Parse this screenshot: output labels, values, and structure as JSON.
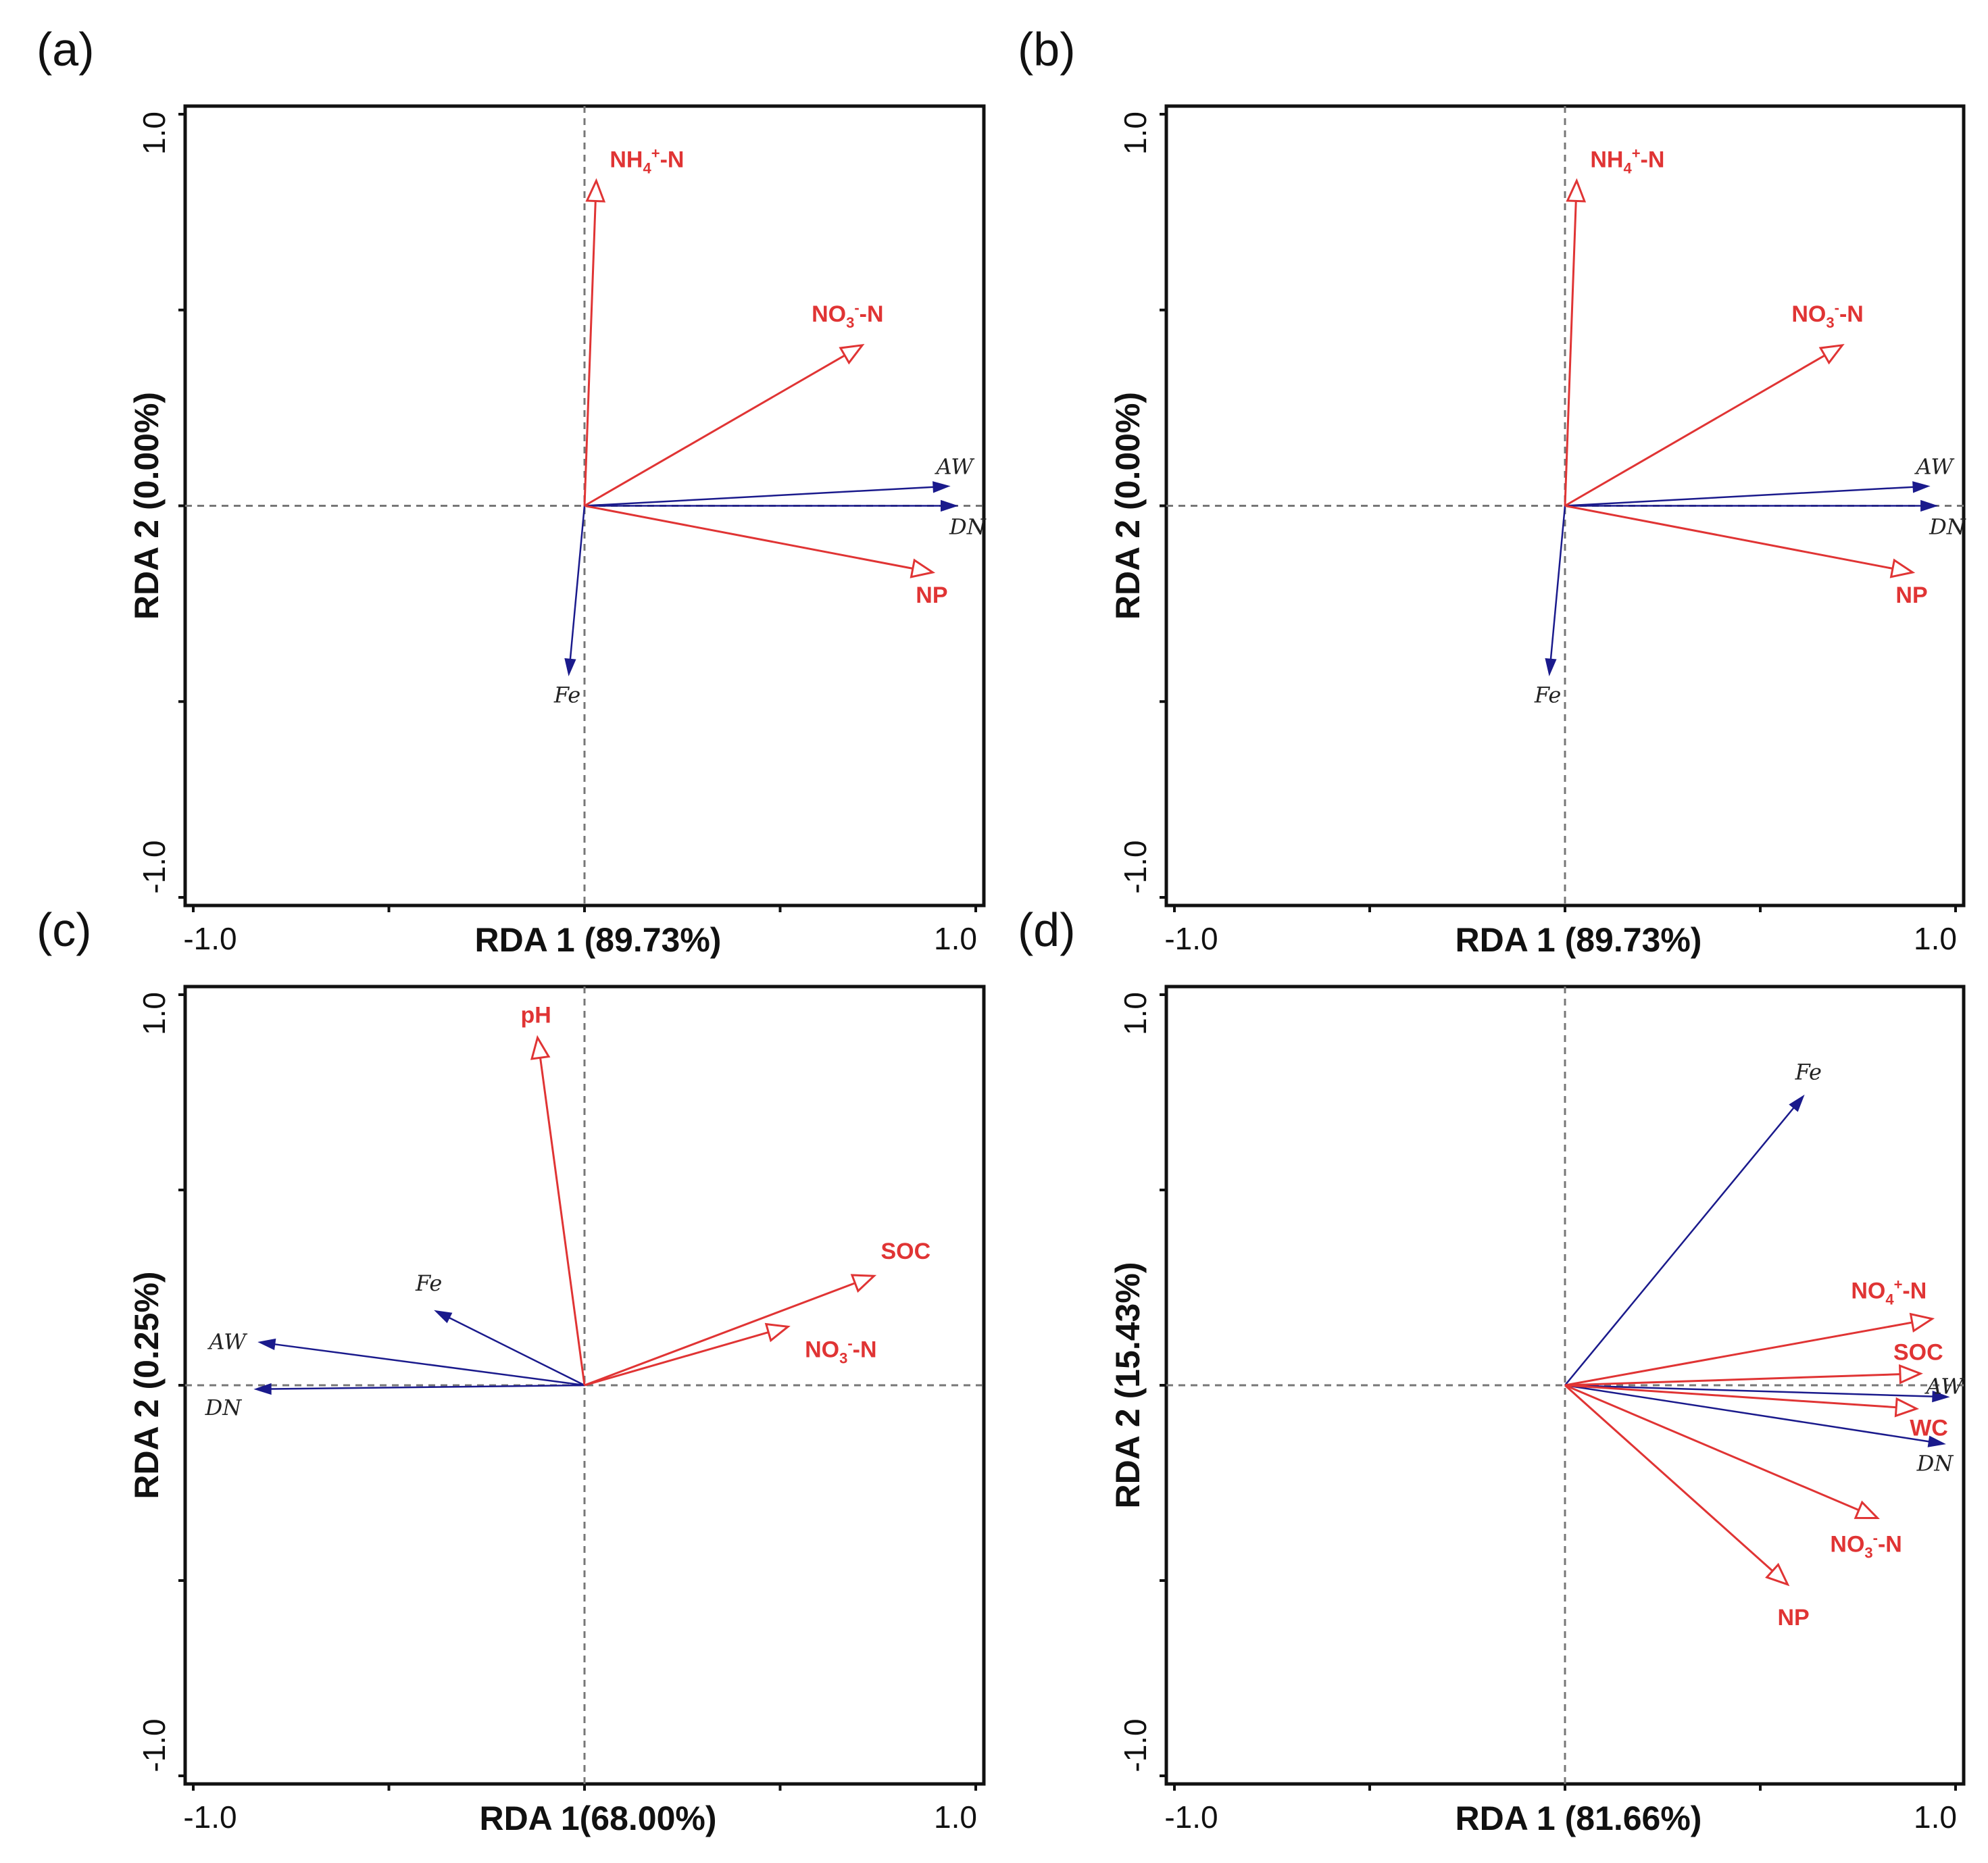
{
  "colors": {
    "environment": "#e03434",
    "response": "#1a1a8c",
    "frame": "#111111",
    "reference_line": "#777777"
  },
  "chart_data": [
    {
      "type": "scatter",
      "subtype": "rda-biplot",
      "panel": "(a)",
      "xlabel": "RDA 1 (89.73%)",
      "ylabel": "RDA 2 (0.00%)",
      "xlim": [
        -1.0,
        1.0
      ],
      "ylim": [
        -1.0,
        1.0
      ],
      "x_tick_labels": [
        "-1.0",
        "1.0"
      ],
      "y_tick_labels": [
        "1.0",
        "-1.0"
      ],
      "environment_arrows": [
        {
          "label": "NH4+-N",
          "base": "NH",
          "sub": "4",
          "sup": "+",
          "tail": "-N",
          "x": 0.03,
          "y": 0.83
        },
        {
          "label": "NO3--N",
          "base": "NO",
          "sub": "3",
          "sup": "-",
          "tail": "-N",
          "x": 0.71,
          "y": 0.41
        },
        {
          "label": "NP",
          "base": "NP",
          "x": 0.89,
          "y": -0.17
        }
      ],
      "response_arrows": [
        {
          "label": "AW",
          "x": 0.93,
          "y": 0.05
        },
        {
          "label": "DN",
          "x": 0.95,
          "y": 0.0
        },
        {
          "label": "Fe",
          "x": -0.04,
          "y": -0.43
        }
      ]
    },
    {
      "type": "scatter",
      "subtype": "rda-biplot",
      "panel": "(b)",
      "xlabel": "RDA 1 (89.73%)",
      "ylabel": "RDA 2 (0.00%)",
      "xlim": [
        -1.0,
        1.0
      ],
      "ylim": [
        -1.0,
        1.0
      ],
      "x_tick_labels": [
        "-1.0",
        "1.0"
      ],
      "y_tick_labels": [
        "1.0",
        "-1.0"
      ],
      "environment_arrows": [
        {
          "label": "NH4+-N",
          "base": "NH",
          "sub": "4",
          "sup": "+",
          "tail": "-N",
          "x": 0.03,
          "y": 0.83
        },
        {
          "label": "NO3--N",
          "base": "NO",
          "sub": "3",
          "sup": "-",
          "tail": "-N",
          "x": 0.71,
          "y": 0.41
        },
        {
          "label": "NP",
          "base": "NP",
          "x": 0.89,
          "y": -0.17
        }
      ],
      "response_arrows": [
        {
          "label": "AW",
          "x": 0.93,
          "y": 0.05
        },
        {
          "label": "DN",
          "x": 0.95,
          "y": 0.0
        },
        {
          "label": "Fe",
          "x": -0.04,
          "y": -0.43
        }
      ]
    },
    {
      "type": "scatter",
      "subtype": "rda-biplot",
      "panel": "(c)",
      "xlabel": "RDA 1(68.00%)",
      "ylabel": "RDA 2 (0.25%)",
      "xlim": [
        -1.0,
        1.0
      ],
      "ylim": [
        -1.0,
        1.0
      ],
      "x_tick_labels": [
        "-1.0",
        "1.0"
      ],
      "y_tick_labels": [
        "1.0",
        "-1.0"
      ],
      "environment_arrows": [
        {
          "label": "pH",
          "base": "pH",
          "x": -0.12,
          "y": 0.89
        },
        {
          "label": "SOC",
          "base": "SOC",
          "x": 0.74,
          "y": 0.28
        },
        {
          "label": "NO3--N",
          "base": "NO",
          "sub": "3",
          "sup": "-",
          "tail": "-N",
          "x": 0.52,
          "y": 0.15
        }
      ],
      "response_arrows": [
        {
          "label": "AW",
          "x": -0.83,
          "y": 0.11
        },
        {
          "label": "DN",
          "x": -0.84,
          "y": -0.01
        },
        {
          "label": "Fe",
          "x": -0.38,
          "y": 0.19
        }
      ]
    },
    {
      "type": "scatter",
      "subtype": "rda-biplot",
      "panel": "(d)",
      "xlabel": "RDA 1 (81.66%)",
      "ylabel": "RDA 2 (15.43%)",
      "xlim": [
        -1.0,
        1.0
      ],
      "ylim": [
        -1.0,
        1.0
      ],
      "x_tick_labels": [
        "-1.0",
        "1.0"
      ],
      "y_tick_labels": [
        "1.0",
        "-1.0"
      ],
      "environment_arrows": [
        {
          "label": "NO4+-N",
          "base": "NO",
          "sub": "4",
          "sup": "+",
          "tail": "-N",
          "x": 0.94,
          "y": 0.17
        },
        {
          "label": "SOC",
          "base": "SOC",
          "x": 0.91,
          "y": 0.03
        },
        {
          "label": "WC",
          "base": "WC",
          "x": 0.9,
          "y": -0.06
        },
        {
          "label": "NO3--N",
          "base": "NO",
          "sub": "3",
          "sup": "-",
          "tail": "-N",
          "x": 0.8,
          "y": -0.34
        },
        {
          "label": "NP",
          "base": "NP",
          "x": 0.57,
          "y": -0.51
        }
      ],
      "response_arrows": [
        {
          "label": "Fe",
          "x": 0.61,
          "y": 0.74
        },
        {
          "label": "AW",
          "x": 0.98,
          "y": -0.03
        },
        {
          "label": "DN",
          "x": 0.97,
          "y": -0.15
        }
      ]
    }
  ]
}
